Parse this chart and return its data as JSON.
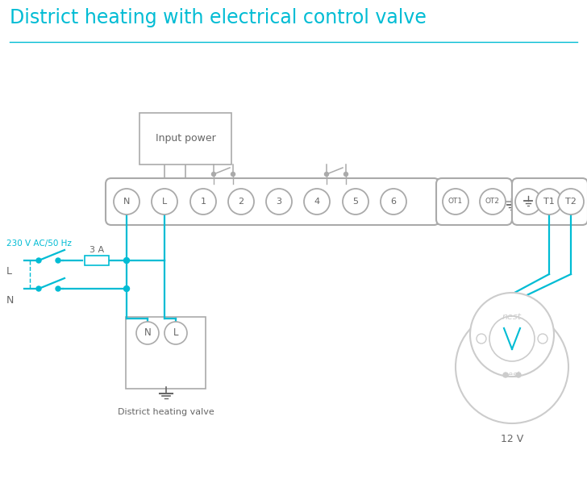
{
  "title": "District heating with electrical control valve",
  "title_color": "#00bcd4",
  "title_fontsize": 17,
  "line_color": "#00bcd4",
  "bg_color": "#ffffff",
  "gray": "#aaaaaa",
  "dark_gray": "#666666",
  "light_gray": "#cccccc",
  "terminal_labels": [
    "N",
    "L",
    "1",
    "2",
    "3",
    "4",
    "5",
    "6"
  ],
  "ot_labels": [
    "OT1",
    "OT2"
  ],
  "t12_labels": [
    "T1",
    "T2"
  ],
  "voltage_label": "230 V AC/50 Hz",
  "fuse_label": "3 A",
  "L_label": "L",
  "N_label": "N",
  "input_power_label": "Input power",
  "district_valve_label": "District heating valve",
  "twelve_v_label": "12 V",
  "nest_label": "nest"
}
